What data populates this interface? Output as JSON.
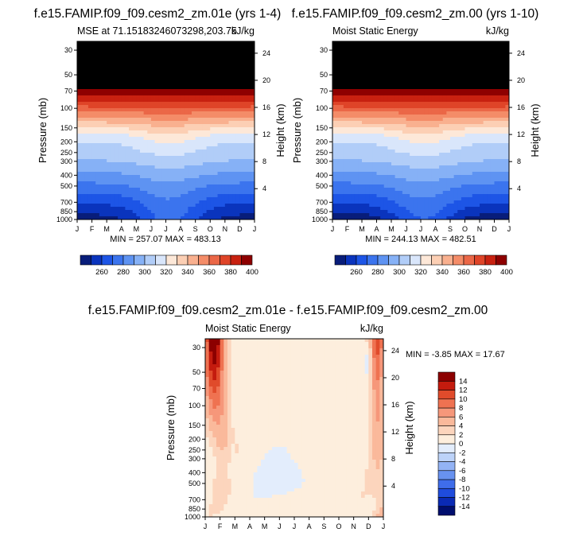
{
  "chart_data": [
    {
      "type": "heatmap",
      "title": "f.e15.FAMIP.f09_f09.cesm2_zm.01e (yrs 1-4)",
      "left_label": "MSE at 71.15183246073298,203.75",
      "right_label": "kJ/kg",
      "ylabel": "Pressure (mb)",
      "y2label": "Height (km)",
      "x_ticks": [
        "J",
        "F",
        "M",
        "A",
        "M",
        "J",
        "J",
        "A",
        "S",
        "O",
        "N",
        "D",
        "J"
      ],
      "y_ticks": [
        "30",
        "50",
        "70",
        "100",
        "150",
        "200",
        "250",
        "300",
        "400",
        "500",
        "700",
        "850",
        "1000"
      ],
      "y2_ticks": [
        "24",
        "20",
        "16",
        "12",
        "8",
        "4"
      ],
      "stats": "MIN = 257.07 MAX = 483.13",
      "colorbar_labels": [
        "260",
        "280",
        "300",
        "320",
        "340",
        "360",
        "380",
        "400"
      ],
      "contour_levels": [
        250,
        260,
        270,
        280,
        290,
        300,
        310,
        320,
        330,
        340,
        350,
        360,
        370,
        380,
        390,
        400
      ],
      "ylim_pressure": [
        1000,
        25
      ]
    },
    {
      "type": "heatmap",
      "title": "f.e15.FAMIP.f09_f09.cesm2_zm.00 (yrs 1-10)",
      "left_label": "Moist Static Energy",
      "right_label": "kJ/kg",
      "ylabel": "Pressure (mb)",
      "y2label": "Height (km)",
      "x_ticks": [
        "J",
        "F",
        "M",
        "A",
        "M",
        "J",
        "J",
        "A",
        "S",
        "O",
        "N",
        "D",
        "J"
      ],
      "y_ticks": [
        "30",
        "50",
        "70",
        "100",
        "150",
        "200",
        "250",
        "300",
        "400",
        "500",
        "700",
        "850",
        "1000"
      ],
      "y2_ticks": [
        "24",
        "20",
        "16",
        "12",
        "8",
        "4"
      ],
      "stats": "MIN = 244.13 MAX = 482.51",
      "colorbar_labels": [
        "260",
        "280",
        "300",
        "320",
        "340",
        "360",
        "380",
        "400"
      ],
      "contour_levels": [
        250,
        260,
        270,
        280,
        290,
        300,
        310,
        320,
        330,
        340,
        350,
        360,
        370,
        380,
        390,
        400
      ],
      "ylim_pressure": [
        1000,
        25
      ]
    },
    {
      "type": "heatmap",
      "title": "f.e15.FAMIP.f09_f09.cesm2_zm.01e - f.e15.FAMIP.f09_f09.cesm2_zm.00",
      "left_label": "Moist Static Energy",
      "right_label": "kJ/kg",
      "ylabel": "Pressure (mb)",
      "y2label": "Height (km)",
      "x_ticks": [
        "J",
        "F",
        "M",
        "A",
        "M",
        "J",
        "J",
        "A",
        "S",
        "O",
        "N",
        "D",
        "J"
      ],
      "y_ticks": [
        "30",
        "50",
        "70",
        "100",
        "150",
        "200",
        "250",
        "300",
        "400",
        "500",
        "700",
        "850",
        "1000"
      ],
      "y2_ticks": [
        "24",
        "20",
        "16",
        "12",
        "8",
        "4"
      ],
      "stats": "MIN = -3.85 MAX = 17.67",
      "colorbar_labels": [
        "14",
        "12",
        "10",
        "8",
        "6",
        "4",
        "2",
        "0",
        "-2",
        "-4",
        "-6",
        "-8",
        "-10",
        "-12",
        "-14"
      ],
      "contour_levels": [
        -14,
        -12,
        -10,
        -8,
        -6,
        -4,
        -2,
        0,
        2,
        4,
        6,
        8,
        10,
        12,
        14
      ],
      "ylim_pressure": [
        1000,
        25
      ]
    }
  ],
  "colors": {
    "mse_palette": [
      "#081d7a",
      "#0a34bd",
      "#1d55e6",
      "#3b74ee",
      "#5e93f2",
      "#86b1f6",
      "#b1cdf8",
      "#d9e6fb",
      "#fde8d8",
      "#fccfb4",
      "#f9b08f",
      "#f48c68",
      "#eb6747",
      "#df4428",
      "#c82110",
      "#8e0000"
    ],
    "diff_palette": [
      "#000e6e",
      "#0a2ab4",
      "#1f4cdd",
      "#3f6dea",
      "#6892f0",
      "#93b3f5",
      "#bdd3f9",
      "#e3edfc",
      "#fdeedd",
      "#fcd5bd",
      "#fab99b",
      "#f6977a",
      "#ef7251",
      "#e04b2b",
      "#c41b0e",
      "#8c0000"
    ]
  }
}
